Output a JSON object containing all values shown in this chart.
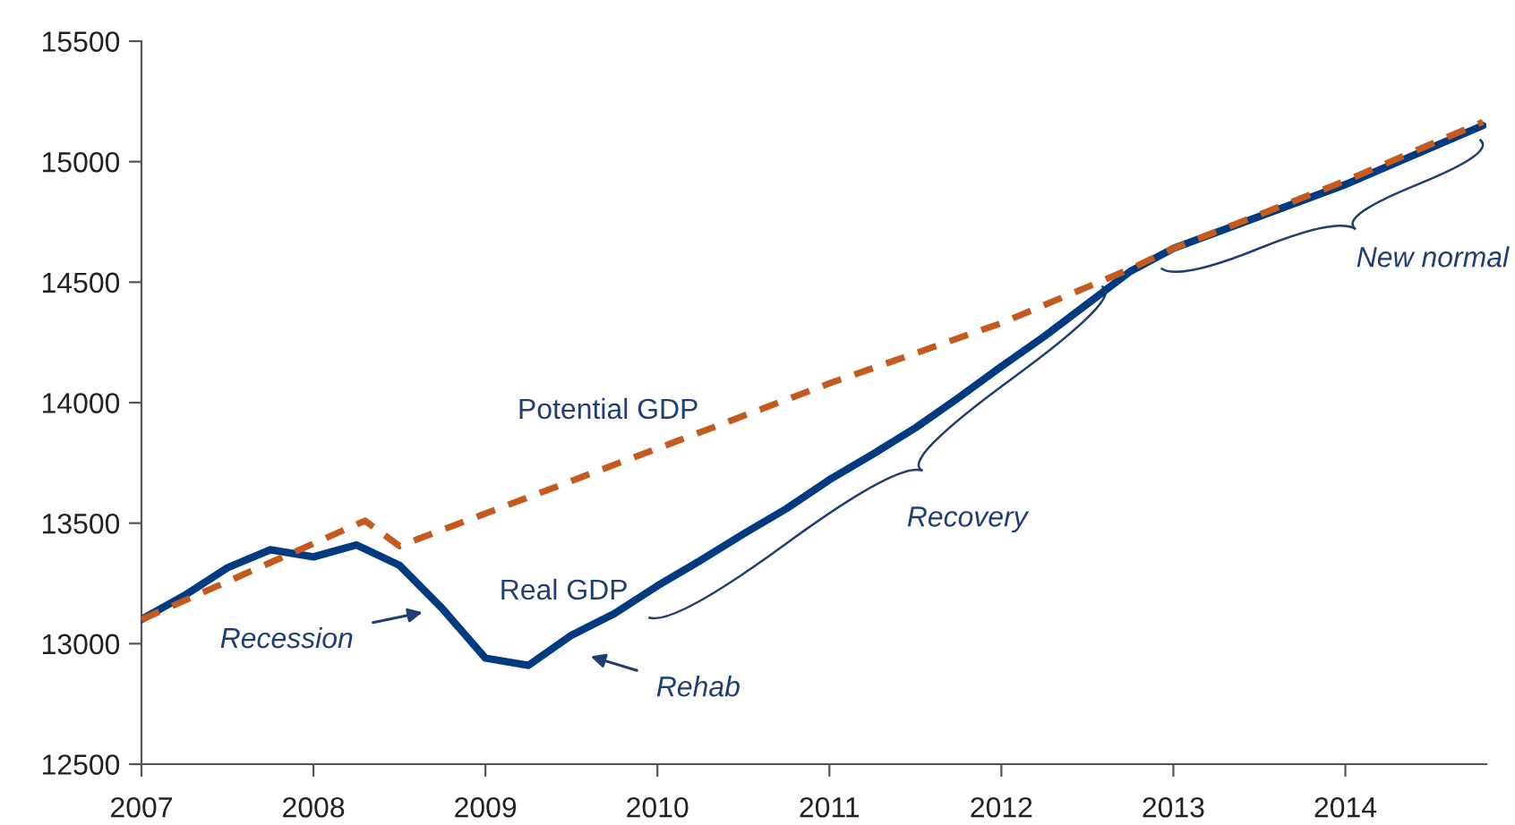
{
  "chart_data": {
    "type": "line",
    "x": [
      2007,
      2007.25,
      2007.5,
      2007.75,
      2008,
      2008.25,
      2008.5,
      2008.75,
      2009,
      2009.25,
      2009.5,
      2009.75,
      2010,
      2010.25,
      2010.5,
      2010.75,
      2011,
      2011.25,
      2011.5,
      2011.75,
      2012,
      2012.25,
      2012.5,
      2012.75,
      2013,
      2014,
      2014.8
    ],
    "series": [
      {
        "name": "Potential GDP",
        "color": "#c55a1e",
        "line_style": "dashed",
        "x": [
          2007,
          2008.3,
          2008.5,
          2009,
          2010,
          2011,
          2012,
          2012.75,
          2013,
          2014,
          2014.8
        ],
        "values": [
          13100,
          13510,
          13405,
          13540,
          13810,
          14080,
          14330,
          14555,
          14640,
          14920,
          15165
        ]
      },
      {
        "name": "Real GDP",
        "color": "#003a80",
        "line_style": "solid",
        "values": [
          13100,
          13200,
          13315,
          13390,
          13360,
          13410,
          13325,
          13145,
          12940,
          12910,
          13035,
          13125,
          13240,
          13345,
          13455,
          13560,
          13680,
          13785,
          13895,
          14020,
          14150,
          14275,
          14410,
          14545,
          14640,
          14905,
          15150
        ]
      }
    ],
    "annotations": [
      "Recession",
      "Rehab",
      "Recovery",
      "New normal"
    ],
    "xlim": [
      2007,
      2014.82
    ],
    "xticks": [
      2007,
      2008,
      2009,
      2010,
      2011,
      2012,
      2013,
      2014
    ],
    "ylim": [
      12500,
      15500
    ],
    "yticks": [
      12500,
      13000,
      13500,
      14000,
      14500,
      15000,
      15500
    ],
    "grid": false,
    "legend": false,
    "marker": "none"
  }
}
